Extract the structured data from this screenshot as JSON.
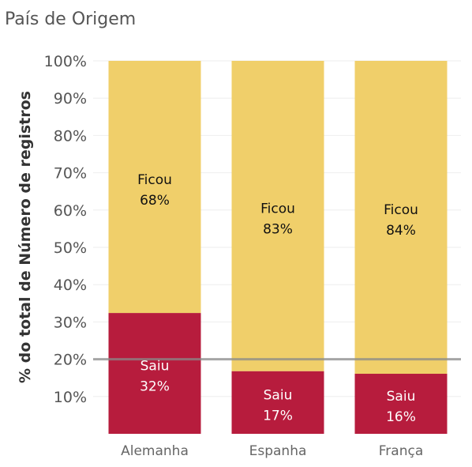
{
  "chart_data": {
    "type": "bar",
    "stacked": true,
    "normalized": true,
    "title": "País de Origem",
    "ylabel": "% do total de Número de registros",
    "xlabel": "",
    "categories": [
      "Alemanha",
      "Espanha",
      "França"
    ],
    "series": [
      {
        "name": "Saiu",
        "values": [
          32.4,
          16.8,
          16.1
        ],
        "labels": [
          "32%",
          "17%",
          "16%"
        ],
        "color": "#b71c3d",
        "label_color": "#ffffff"
      },
      {
        "name": "Ficou",
        "values": [
          67.6,
          83.2,
          83.9
        ],
        "labels": [
          "68%",
          "83%",
          "84%"
        ],
        "color": "#f0cf6a",
        "label_color": "#111111"
      }
    ],
    "yticks": [
      10,
      20,
      30,
      40,
      50,
      60,
      70,
      80,
      90,
      100
    ],
    "ytick_labels": [
      "10%",
      "20%",
      "30%",
      "40%",
      "50%",
      "60%",
      "70%",
      "80%",
      "90%",
      "100%"
    ],
    "ylim": [
      0,
      100
    ],
    "reference_line": {
      "value": 20,
      "color": "#8a8a8a"
    },
    "grid": true,
    "legend": "none"
  }
}
